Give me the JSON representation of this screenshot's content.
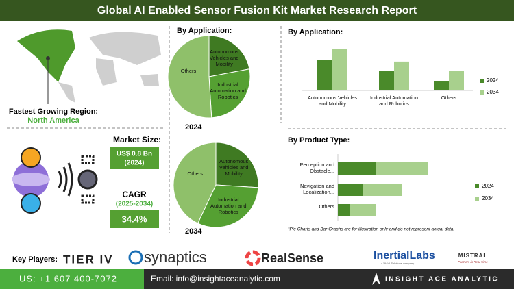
{
  "header": {
    "title": "Global AI Enabled Sensor Fusion Kit Market Research Report"
  },
  "region": {
    "label": "Fastest Growing Region:",
    "value": "North America"
  },
  "market": {
    "size_label": "Market Size:",
    "size_value": "US$ 0.8 Bn",
    "size_year": "(2024)",
    "cagr_label": "CAGR",
    "cagr_years": "(2025-2034)",
    "cagr_value": "34.4%"
  },
  "note": "*Pie Charts and Bar Graphs are for illustration only and do not represent actual data.",
  "key_players": {
    "label": "Key Players:",
    "players": [
      "TIER IV",
      "synaptics",
      "RealSense",
      "InertialLabs",
      "a VIAVI Solutions company",
      "MISTRAL",
      "Partners in Real Time"
    ]
  },
  "footer": {
    "phone": "US: +1 607 400-7072",
    "email": "Email: info@insightaceanalytic.com",
    "brand": "INSIGHT ACE ANALYTIC"
  },
  "chart_data": [
    {
      "type": "pie",
      "title": "By Application:",
      "subtitle": "2024",
      "categories": [
        "Autonomous Vehicles and Mobility",
        "Industrial Automation and Robotics",
        "Others"
      ],
      "values": [
        22,
        27,
        51
      ],
      "colors": [
        "#3f7a22",
        "#55a032",
        "#8fc06a"
      ]
    },
    {
      "type": "pie",
      "subtitle": "2034",
      "categories": [
        "Autonomous Vehicles and Mobility",
        "Industrial Automation and Robotics",
        "Others"
      ],
      "values": [
        26,
        31,
        43
      ],
      "colors": [
        "#3f7a22",
        "#55a032",
        "#8fc06a"
      ]
    },
    {
      "type": "bar",
      "title": "By Application:",
      "categories": [
        "Autonomous Vehicles and Mobility",
        "Industrial Automation and Robotics",
        "Others"
      ],
      "series": [
        {
          "name": "2024",
          "color": "#4a8a2a",
          "values": [
            42,
            27,
            13
          ]
        },
        {
          "name": "2034",
          "color": "#a8d08d",
          "values": [
            57,
            40,
            27
          ]
        }
      ]
    },
    {
      "type": "hbar",
      "title": "By Product Type:",
      "categories": [
        "Perception and Obstacle...",
        "Navigation and Localization...",
        "Others"
      ],
      "series": [
        {
          "name": "2024",
          "color": "#4a8a2a",
          "values": [
            55,
            36,
            17
          ]
        },
        {
          "name": "2034",
          "color": "#a8d08d",
          "values": [
            77,
            57,
            38
          ]
        }
      ]
    }
  ]
}
